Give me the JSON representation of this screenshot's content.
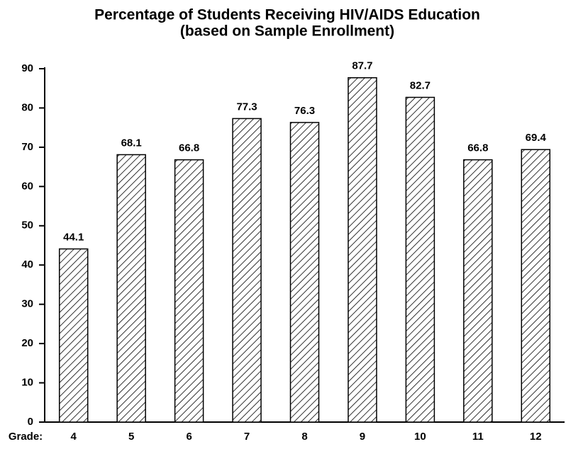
{
  "chart_data": {
    "type": "bar",
    "title": "Percentage of Students Receiving HIV/AIDS Education",
    "subtitle": "(based on Sample Enrollment)",
    "x_label": "Grade:",
    "categories": [
      "4",
      "5",
      "6",
      "7",
      "8",
      "9",
      "10",
      "11",
      "12"
    ],
    "values": [
      44.1,
      68.1,
      66.8,
      77.3,
      76.3,
      87.7,
      82.7,
      66.8,
      69.4
    ],
    "color": "#000000",
    "ylim": [
      0,
      90
    ],
    "yticks": [
      0,
      10,
      20,
      30,
      40,
      50,
      60,
      70,
      80,
      90
    ],
    "grid": false
  }
}
